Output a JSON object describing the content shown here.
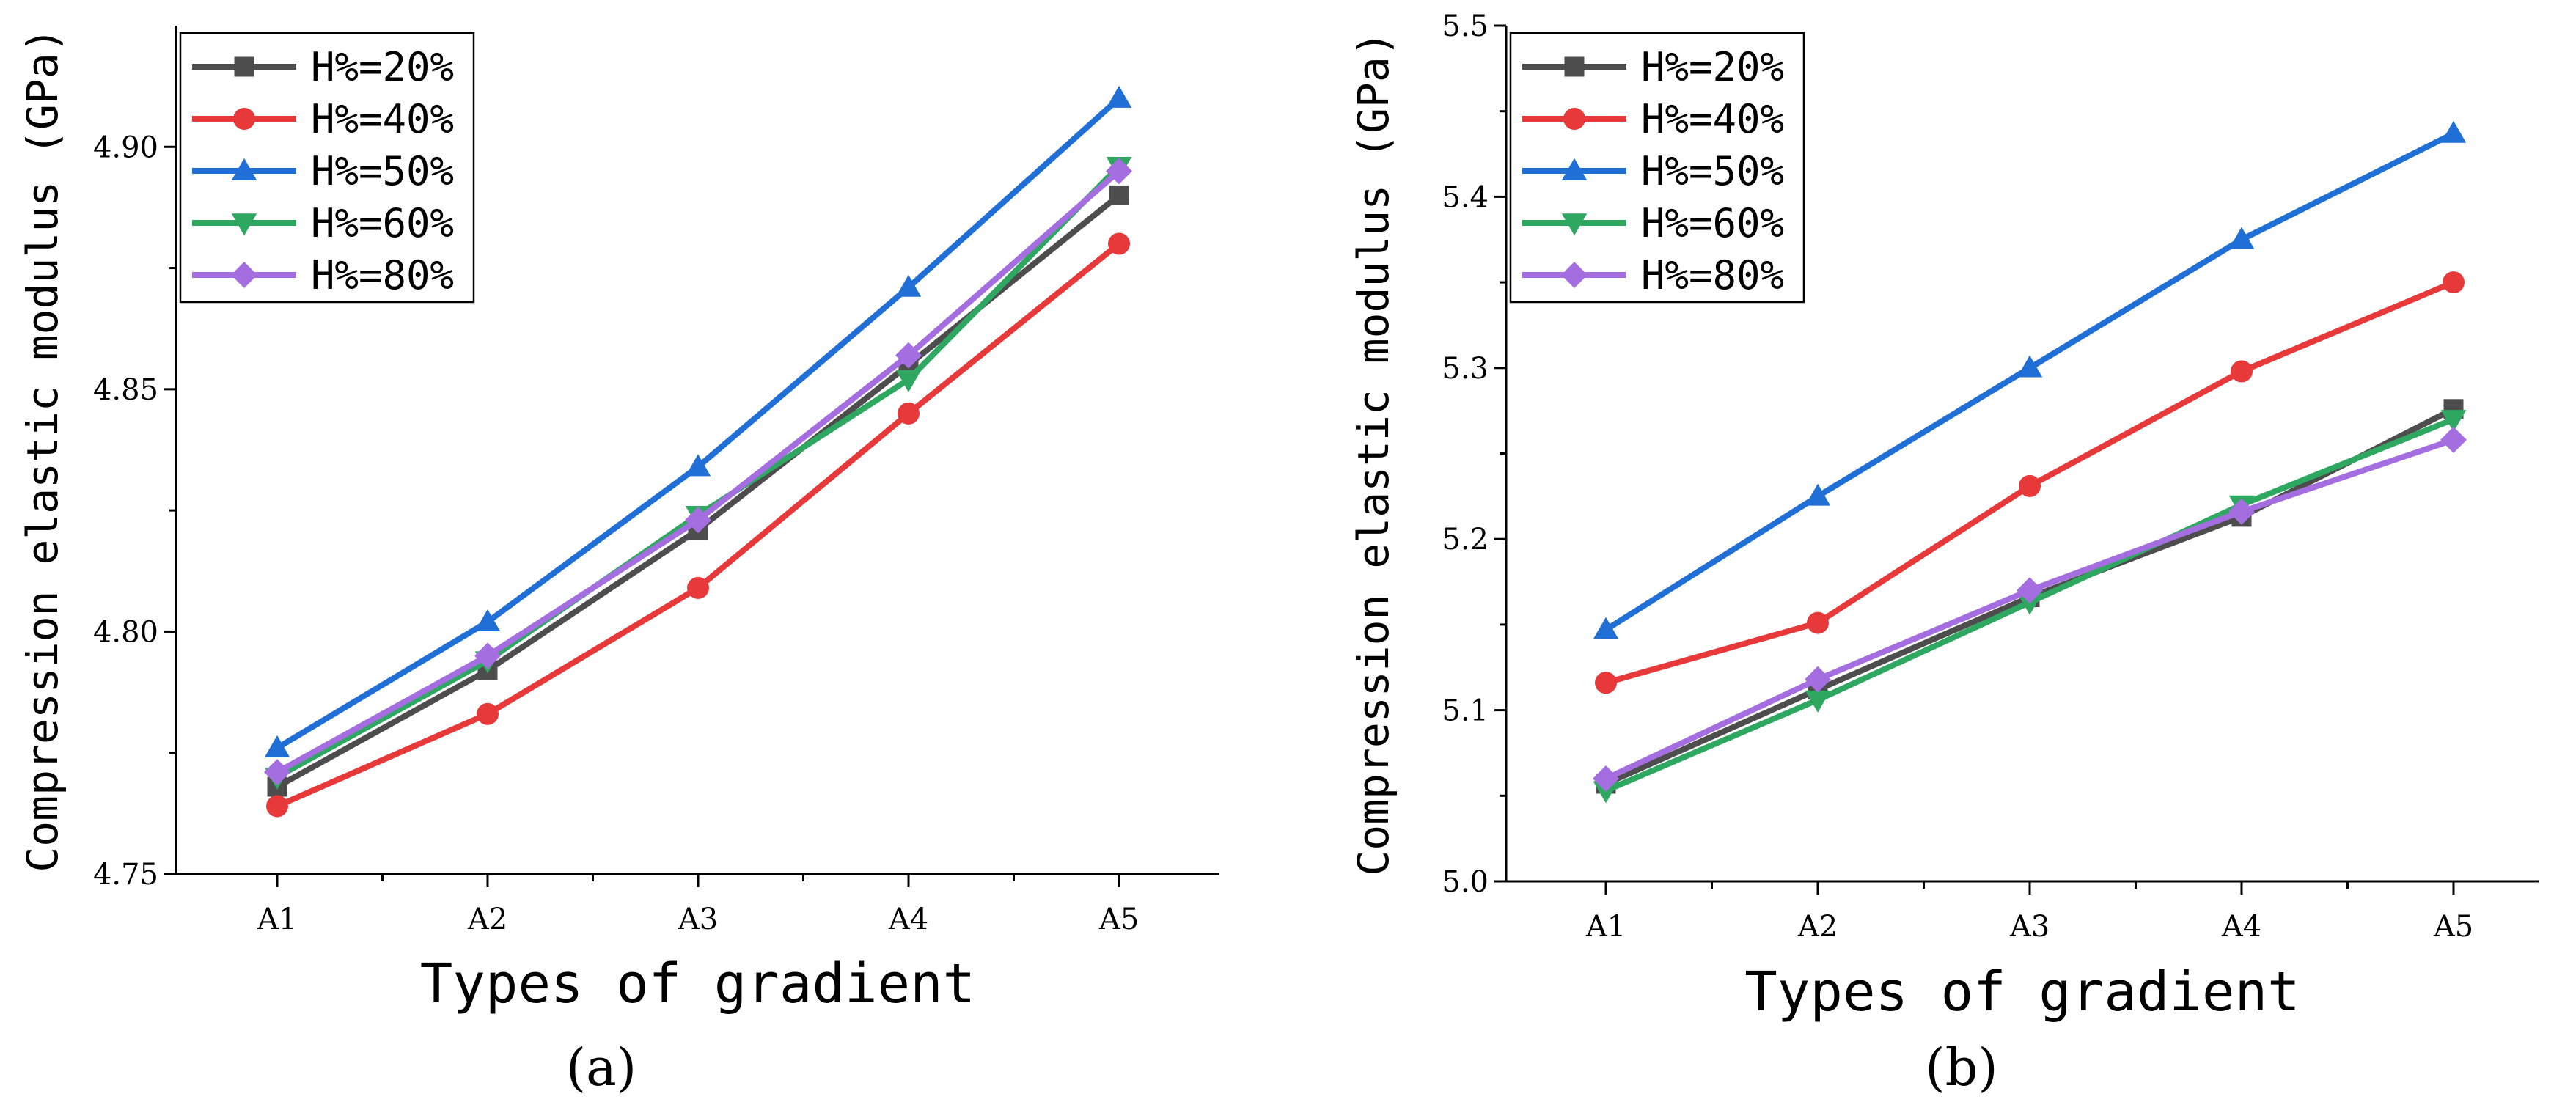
{
  "chart_data": [
    {
      "type": "line",
      "panel_label": "(a)",
      "xlabel": "Types of gradient",
      "ylabel": "Compression elastic modulus (GPa)",
      "categories": [
        "A1",
        "A2",
        "A3",
        "A4",
        "A5"
      ],
      "ylim": [
        4.75,
        4.925
      ],
      "yticks": [
        4.75,
        4.8,
        4.85,
        4.9
      ],
      "ytick_labels": [
        "4.75",
        "4.80",
        "4.85",
        "4.90"
      ],
      "legend_position": "top-left",
      "series": [
        {
          "name": "H%=20%",
          "color": "#4d4d4d",
          "marker": "square",
          "values": [
            4.768,
            4.792,
            4.821,
            4.855,
            4.89
          ]
        },
        {
          "name": "H%=40%",
          "color": "#e8393a",
          "marker": "circle",
          "values": [
            4.764,
            4.783,
            4.809,
            4.845,
            4.88
          ]
        },
        {
          "name": "H%=50%",
          "color": "#1f6fd6",
          "marker": "triangle-up",
          "values": [
            4.776,
            4.802,
            4.834,
            4.871,
            4.91
          ]
        },
        {
          "name": "H%=60%",
          "color": "#2ea861",
          "marker": "triangle-down",
          "values": [
            4.77,
            4.794,
            4.824,
            4.852,
            4.896
          ]
        },
        {
          "name": "H%=80%",
          "color": "#a56ee0",
          "marker": "diamond",
          "values": [
            4.771,
            4.795,
            4.823,
            4.857,
            4.895
          ]
        }
      ]
    },
    {
      "type": "line",
      "panel_label": "(b)",
      "xlabel": "Types of gradient",
      "ylabel": "Compression elastic modulus (GPa)",
      "categories": [
        "A1",
        "A2",
        "A3",
        "A4",
        "A5"
      ],
      "ylim": [
        5.0,
        5.5
      ],
      "yticks": [
        5.0,
        5.1,
        5.2,
        5.3,
        5.4,
        5.5
      ],
      "ytick_labels": [
        "5.0",
        "5.1",
        "5.2",
        "5.3",
        "5.4",
        "5.5"
      ],
      "legend_position": "top-left",
      "series": [
        {
          "name": "H%=20%",
          "color": "#4d4d4d",
          "marker": "square",
          "values": [
            5.057,
            5.112,
            5.166,
            5.213,
            5.276
          ]
        },
        {
          "name": "H%=40%",
          "color": "#e8393a",
          "marker": "circle",
          "values": [
            5.116,
            5.151,
            5.231,
            5.298,
            5.35
          ]
        },
        {
          "name": "H%=50%",
          "color": "#1f6fd6",
          "marker": "triangle-up",
          "values": [
            5.147,
            5.225,
            5.3,
            5.375,
            5.437
          ]
        },
        {
          "name": "H%=60%",
          "color": "#2ea861",
          "marker": "triangle-down",
          "values": [
            5.053,
            5.106,
            5.163,
            5.22,
            5.27
          ]
        },
        {
          "name": "H%=80%",
          "color": "#a56ee0",
          "marker": "diamond",
          "values": [
            5.06,
            5.118,
            5.17,
            5.216,
            5.258
          ]
        }
      ]
    }
  ]
}
